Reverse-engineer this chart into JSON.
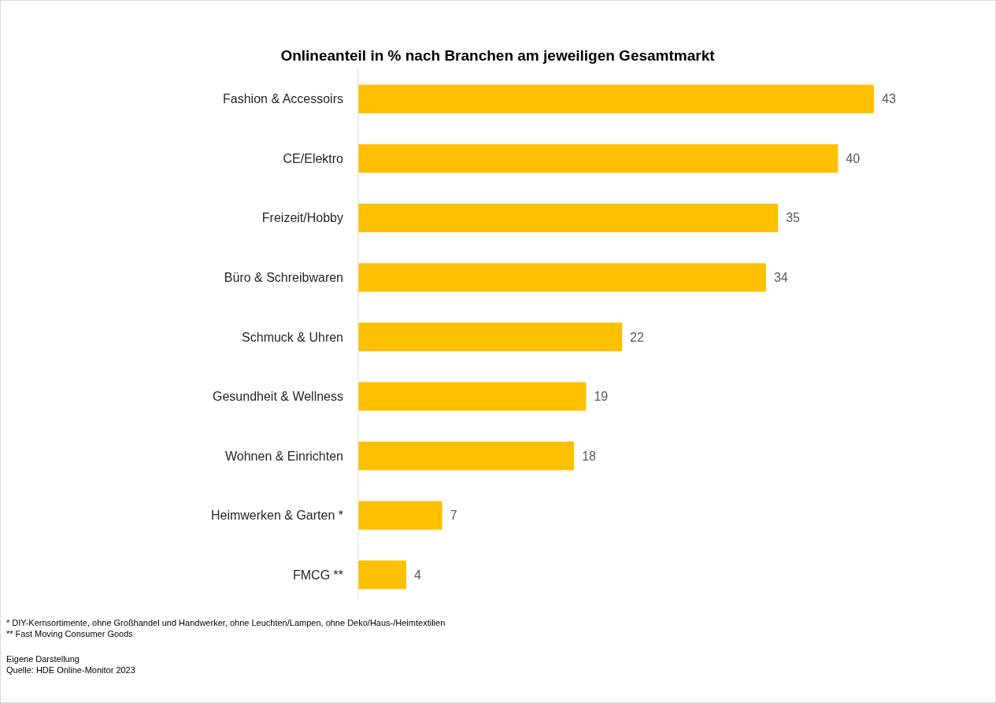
{
  "chart_data": {
    "type": "bar",
    "orientation": "horizontal",
    "title": "Onlineanteil in % nach Branchen am jeweiligen Gesamtmarkt",
    "categories": [
      "Fashion & Accessoirs",
      "CE/Elektro",
      "Freizeit/Hobby",
      "Büro & Schreibwaren",
      "Schmuck & Uhren",
      "Gesundheit & Wellness",
      "Wohnen & Einrichten",
      "Heimwerken & Garten *",
      "FMCG **"
    ],
    "values": [
      43,
      40,
      35,
      34,
      22,
      19,
      18,
      7,
      4
    ],
    "color": "#ffc000",
    "data_labels": true,
    "annotations": [
      "* DIY-Kernsortimente, ohne Großhandel und Handwerker, ohne Leuchten/Lampen, ohne Deko/Haus-/Heimtextilien",
      "** Fast Moving Consumer Goods",
      "Eigene Darstellung",
      "Quelle: HDE Online-Monitor 2023"
    ]
  }
}
